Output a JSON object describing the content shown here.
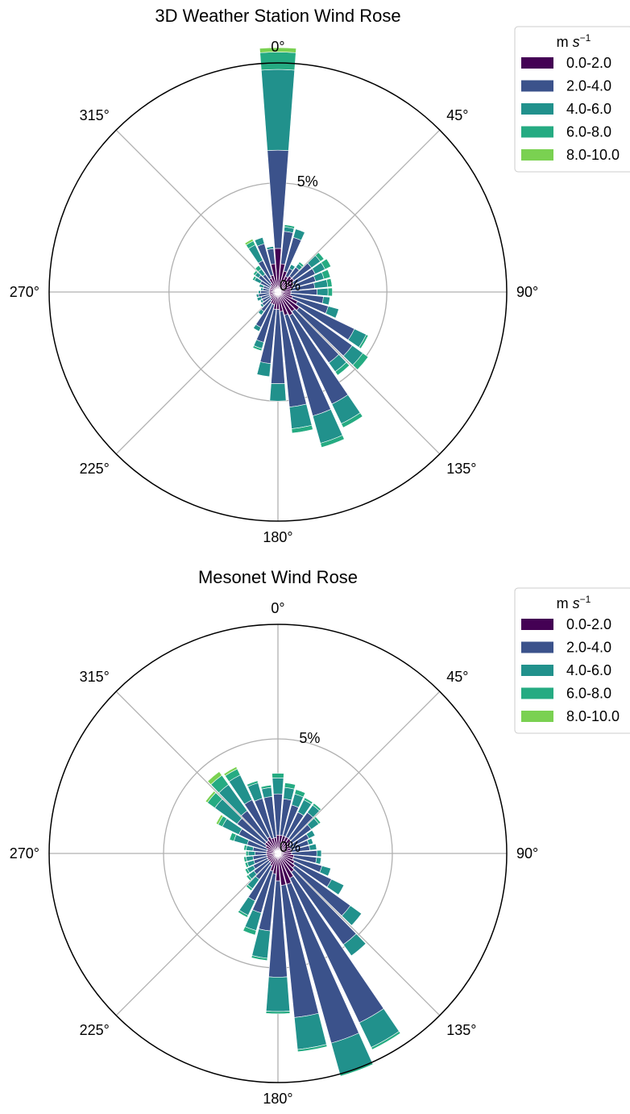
{
  "chart_data": [
    {
      "type": "windrose",
      "title": "3D Weather Station Wind Rose",
      "angle_labels": [
        "0°",
        "45°",
        "90°",
        "135°",
        "180°",
        "225°",
        "270°",
        "315°"
      ],
      "radial_tick_labels": [
        "0%",
        "5%"
      ],
      "r_max_percent": 10.5,
      "legend": {
        "title_main": "m ",
        "title_italic": "s",
        "title_sup": "−1",
        "placement": "upper-right outside"
      },
      "speed_bins": [
        "0.0-2.0",
        "2.0-4.0",
        "4.0-6.0",
        "6.0-8.0",
        "8.0-10.0"
      ],
      "colors": [
        "#440154",
        "#3b528b",
        "#21918c",
        "#25ab82",
        "#7ad151"
      ],
      "directions_deg": [
        0,
        10,
        20,
        30,
        40,
        50,
        60,
        70,
        80,
        90,
        100,
        110,
        120,
        130,
        140,
        150,
        160,
        170,
        180,
        190,
        200,
        210,
        220,
        230,
        240,
        250,
        260,
        270,
        280,
        290,
        300,
        310,
        320,
        330,
        340,
        350
      ],
      "stacks": [
        [
          2.0,
          4.5,
          3.7,
          0.8,
          0.2
        ],
        [
          1.3,
          1.5,
          0.2,
          0.1,
          0
        ],
        [
          1.0,
          1.6,
          0.4,
          0,
          0
        ],
        [
          0.8,
          0.4,
          0.2,
          0,
          0
        ],
        [
          0.9,
          0.5,
          0.2,
          0.1,
          0
        ],
        [
          0.9,
          1.0,
          0.5,
          0.2,
          0
        ],
        [
          0.8,
          1.1,
          0.5,
          0.3,
          0
        ],
        [
          0.7,
          1.1,
          0.4,
          0.3,
          0
        ],
        [
          0.6,
          1.1,
          0.6,
          0.2,
          0
        ],
        [
          0.6,
          1.2,
          0.5,
          0.2,
          0
        ],
        [
          0.6,
          1.5,
          0.3,
          0,
          0
        ],
        [
          0.7,
          1.7,
          0.5,
          0,
          0
        ],
        [
          1.0,
          2.9,
          0.6,
          0.1,
          0
        ],
        [
          1.2,
          3.0,
          0.6,
          0.3,
          0
        ],
        [
          1.1,
          2.9,
          0.5,
          0.2,
          0
        ],
        [
          1.2,
          4.5,
          1.0,
          0.2,
          0
        ],
        [
          1.1,
          4.8,
          1.3,
          0.2,
          0
        ],
        [
          0.9,
          4.4,
          1.0,
          0.2,
          0
        ],
        [
          0.8,
          3.4,
          0.8,
          0,
          0
        ],
        [
          0.8,
          2.5,
          0.6,
          0,
          0
        ],
        [
          0.6,
          1.8,
          0.3,
          0.1,
          0
        ],
        [
          0.6,
          1.2,
          0.2,
          0,
          0
        ],
        [
          0.5,
          0.6,
          0.2,
          0,
          0
        ],
        [
          0.4,
          0.5,
          0.1,
          0,
          0
        ],
        [
          0.4,
          0.4,
          0.1,
          0,
          0
        ],
        [
          0.4,
          0.4,
          0.2,
          0,
          0
        ],
        [
          0.4,
          0.5,
          0.1,
          0,
          0
        ],
        [
          0.4,
          0.4,
          0.1,
          0,
          0
        ],
        [
          0.4,
          0.3,
          0.1,
          0,
          0
        ],
        [
          0.4,
          0.3,
          0.2,
          0,
          0
        ],
        [
          0.4,
          0.5,
          0.3,
          0.1,
          0
        ],
        [
          0.4,
          0.7,
          0.2,
          0.1,
          0
        ],
        [
          0.5,
          0.5,
          0.3,
          0.2,
          0
        ],
        [
          0.7,
          0.9,
          0.8,
          0.2,
          0.1
        ],
        [
          0.8,
          1.5,
          0.3,
          0,
          0
        ],
        [
          1.3,
          0.7,
          0.1,
          0,
          0
        ]
      ]
    },
    {
      "type": "windrose",
      "title": "Mesonet Wind Rose",
      "angle_labels": [
        "0°",
        "45°",
        "90°",
        "135°",
        "180°",
        "225°",
        "270°",
        "315°"
      ],
      "radial_tick_labels": [
        "0%",
        "5%"
      ],
      "r_max_percent": 10.0,
      "legend": {
        "title_main": "m ",
        "title_italic": "s",
        "title_sup": "−1",
        "placement": "upper-right outside"
      },
      "speed_bins": [
        "0.0-2.0",
        "2.0-4.0",
        "4.0-6.0",
        "6.0-8.0",
        "8.0-10.0"
      ],
      "colors": [
        "#440154",
        "#3b528b",
        "#21918c",
        "#25ab82",
        "#7ad151"
      ],
      "directions_deg": [
        0,
        10,
        20,
        30,
        40,
        50,
        60,
        70,
        80,
        90,
        100,
        110,
        120,
        130,
        140,
        150,
        160,
        170,
        180,
        190,
        200,
        210,
        220,
        230,
        240,
        250,
        260,
        270,
        280,
        290,
        300,
        310,
        320,
        330,
        340,
        350
      ],
      "stacks": [
        [
          0.8,
          1.8,
          0.7,
          0.2,
          0
        ],
        [
          0.8,
          1.6,
          0.5,
          0.2,
          0
        ],
        [
          0.8,
          1.4,
          0.5,
          0.2,
          0
        ],
        [
          0.8,
          1.2,
          0.6,
          0.1,
          0
        ],
        [
          0.8,
          1.4,
          0.4,
          0.1,
          0
        ],
        [
          0.7,
          1.1,
          0.4,
          0.1,
          0
        ],
        [
          0.6,
          0.9,
          0.3,
          0,
          0
        ],
        [
          0.6,
          0.8,
          0.2,
          0,
          0
        ],
        [
          0.6,
          0.8,
          0.3,
          0,
          0
        ],
        [
          0.6,
          1.1,
          0.2,
          0,
          0
        ],
        [
          0.7,
          1.0,
          0.2,
          0,
          0
        ],
        [
          0.7,
          1.3,
          0.4,
          0,
          0
        ],
        [
          0.8,
          1.8,
          0.6,
          0,
          0
        ],
        [
          0.9,
          3.0,
          0.6,
          0,
          0
        ],
        [
          1.0,
          3.9,
          0.6,
          0,
          0
        ],
        [
          1.2,
          7.0,
          1.2,
          0.1,
          0
        ],
        [
          1.4,
          7.2,
          1.4,
          0.1,
          0
        ],
        [
          1.4,
          5.8,
          1.4,
          0.1,
          0
        ],
        [
          1.2,
          4.2,
          1.5,
          0.1,
          0
        ],
        [
          0.9,
          2.5,
          1.2,
          0.1,
          0
        ],
        [
          0.8,
          1.9,
          0.8,
          0.2,
          0
        ],
        [
          0.6,
          1.7,
          0.7,
          0.1,
          0
        ],
        [
          0.5,
          0.9,
          0.5,
          0.1,
          0
        ],
        [
          0.5,
          0.8,
          0.3,
          0.1,
          0
        ],
        [
          0.5,
          0.7,
          0.3,
          0.1,
          0
        ],
        [
          0.5,
          0.6,
          0.3,
          0.1,
          0
        ],
        [
          0.5,
          0.6,
          0.3,
          0.1,
          0
        ],
        [
          0.5,
          0.5,
          0.3,
          0.1,
          0
        ],
        [
          0.5,
          0.6,
          0.3,
          0.1,
          0
        ],
        [
          0.5,
          0.9,
          0.6,
          0.2,
          0
        ],
        [
          0.6,
          1.3,
          0.8,
          0.2,
          0.1
        ],
        [
          0.7,
          1.5,
          1.2,
          0.4,
          0.1
        ],
        [
          0.7,
          1.6,
          1.4,
          0.5,
          0.2
        ],
        [
          0.8,
          1.8,
          1.2,
          0.3,
          0.1
        ],
        [
          0.7,
          1.8,
          0.7,
          0.1,
          0
        ],
        [
          0.7,
          1.8,
          0.4,
          0.1,
          0
        ]
      ]
    }
  ]
}
